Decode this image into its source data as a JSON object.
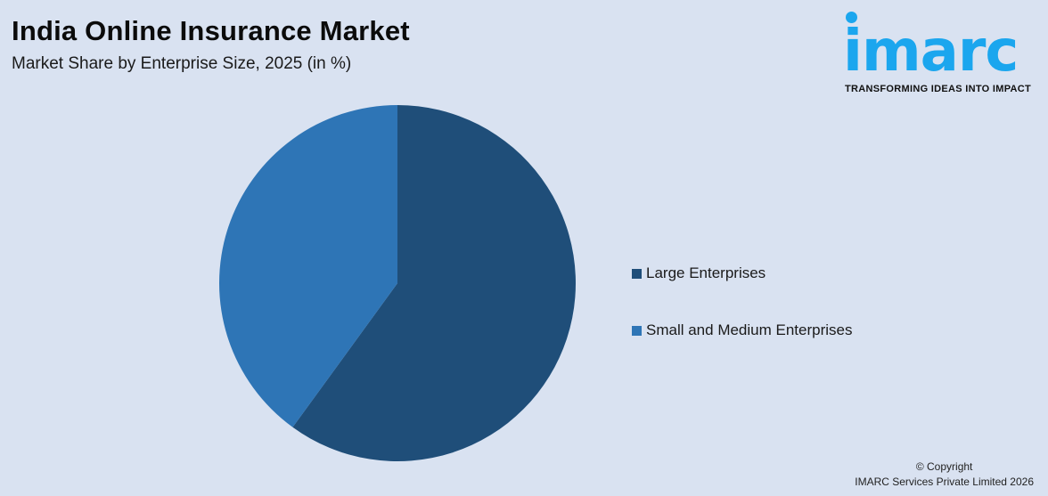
{
  "header": {
    "title": "India Online Insurance Market",
    "subtitle": "Market Share by Enterprise Size, 2025 (in %)"
  },
  "logo": {
    "wordmark": "imarc",
    "tagline": "TRANSFORMING IDEAS INTO IMPACT",
    "color": "#1ba6ee"
  },
  "legend": {
    "items": [
      {
        "label": "Large Enterprises",
        "color": "#1f4e79"
      },
      {
        "label": "Small and Medium Enterprises",
        "color": "#2e75b6"
      }
    ]
  },
  "footer": {
    "copyright_line1": "© Copyright",
    "copyright_line2": "IMARC Services Private Limited 2026"
  },
  "chart_data": {
    "type": "pie",
    "title": "India Online Insurance Market",
    "subtitle": "Market Share by Enterprise Size, 2025 (in %)",
    "categories": [
      "Large Enterprises",
      "Small and Medium Enterprises"
    ],
    "values": [
      60,
      40
    ],
    "colors": [
      "#1f4e79",
      "#2e75b6"
    ],
    "start_angle": "12 o'clock, clockwise",
    "legend_position": "right",
    "data_labels": false
  }
}
